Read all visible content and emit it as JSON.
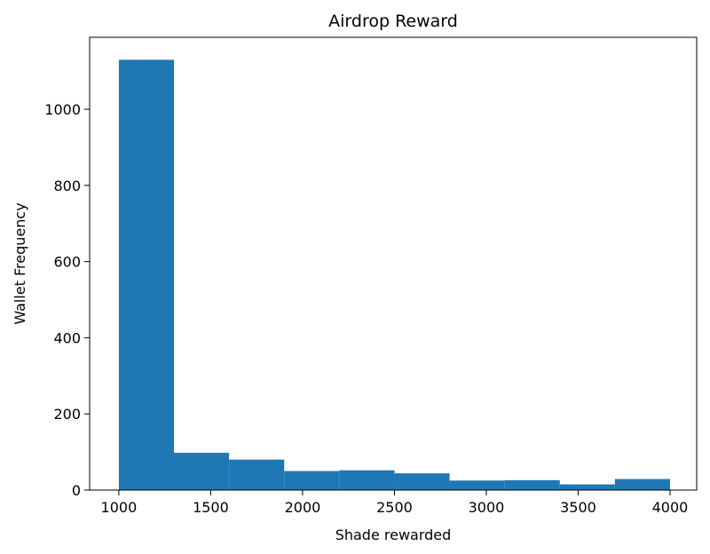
{
  "chart_data": {
    "type": "histogram",
    "title": "Airdrop Reward",
    "x_label": "Shade rewarded",
    "y_label": "Wallet Frequency",
    "bins": [
      1000,
      1300,
      1600,
      1900,
      2200,
      2500,
      2800,
      3100,
      3400,
      3700,
      4000
    ],
    "values": [
      1130,
      98,
      80,
      50,
      52,
      44,
      25,
      26,
      15,
      29
    ],
    "color": "#1f77b4",
    "xlim": [
      841,
      4145
    ],
    "xticks": [
      1000,
      1500,
      2000,
      2500,
      3000,
      3500,
      4000
    ],
    "ylim": [
      0,
      1189
    ],
    "yticks": [
      0,
      200,
      400,
      600,
      800,
      1000
    ],
    "grid": false
  }
}
